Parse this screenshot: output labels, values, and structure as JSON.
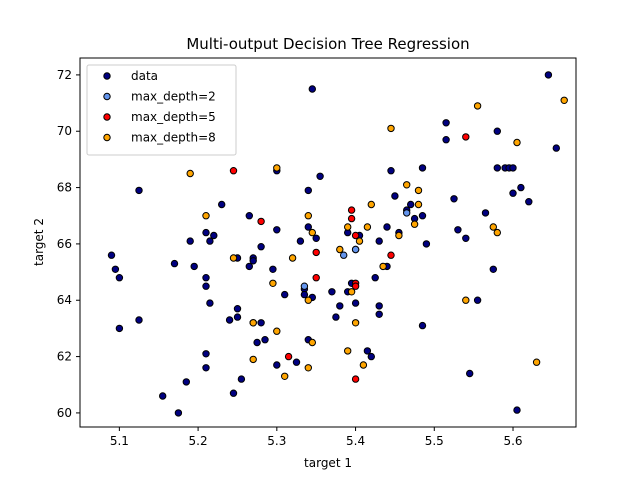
{
  "chart_data": {
    "type": "scatter",
    "title": "Multi-output Decision Tree Regression",
    "xlabel": "target 1",
    "ylabel": "target 2",
    "xlim": [
      5.05,
      5.68
    ],
    "ylim": [
      59.5,
      72.6
    ],
    "xticks": [
      "5.1",
      "5.2",
      "5.3",
      "5.4",
      "5.5",
      "5.6"
    ],
    "xtick_values": [
      5.1,
      5.2,
      5.3,
      5.4,
      5.5,
      5.6
    ],
    "yticks": [
      "60",
      "62",
      "64",
      "66",
      "68",
      "70",
      "72"
    ],
    "ytick_values": [
      60,
      62,
      64,
      66,
      68,
      70,
      72
    ],
    "grid": false,
    "legend_position": "top-left",
    "series": [
      {
        "name": "data",
        "color": "#000080",
        "points": [
          [
            5.09,
            65.6
          ],
          [
            5.095,
            65.1
          ],
          [
            5.1,
            64.8
          ],
          [
            5.1,
            63.0
          ],
          [
            5.125,
            67.9
          ],
          [
            5.125,
            63.3
          ],
          [
            5.155,
            60.6
          ],
          [
            5.17,
            65.3
          ],
          [
            5.175,
            60.0
          ],
          [
            5.185,
            61.1
          ],
          [
            5.19,
            66.1
          ],
          [
            5.195,
            65.2
          ],
          [
            5.21,
            66.4
          ],
          [
            5.21,
            64.8
          ],
          [
            5.21,
            64.5
          ],
          [
            5.21,
            62.1
          ],
          [
            5.21,
            61.6
          ],
          [
            5.215,
            66.1
          ],
          [
            5.215,
            63.9
          ],
          [
            5.22,
            66.3
          ],
          [
            5.23,
            67.4
          ],
          [
            5.24,
            63.3
          ],
          [
            5.245,
            60.7
          ],
          [
            5.25,
            65.5
          ],
          [
            5.25,
            63.7
          ],
          [
            5.25,
            63.4
          ],
          [
            5.255,
            61.2
          ],
          [
            5.265,
            67.0
          ],
          [
            5.265,
            65.2
          ],
          [
            5.27,
            65.5
          ],
          [
            5.27,
            65.4
          ],
          [
            5.275,
            62.5
          ],
          [
            5.28,
            63.2
          ],
          [
            5.28,
            65.9
          ],
          [
            5.285,
            62.6
          ],
          [
            5.295,
            65.1
          ],
          [
            5.3,
            68.6
          ],
          [
            5.3,
            66.5
          ],
          [
            5.3,
            61.7
          ],
          [
            5.31,
            64.2
          ],
          [
            5.325,
            61.8
          ],
          [
            5.33,
            66.1
          ],
          [
            5.335,
            64.4
          ],
          [
            5.335,
            64.2
          ],
          [
            5.34,
            67.9
          ],
          [
            5.34,
            66.6
          ],
          [
            5.34,
            62.6
          ],
          [
            5.345,
            71.5
          ],
          [
            5.345,
            64.1
          ],
          [
            5.35,
            66.2
          ],
          [
            5.355,
            68.4
          ],
          [
            5.37,
            64.3
          ],
          [
            5.375,
            63.4
          ],
          [
            5.38,
            63.8
          ],
          [
            5.39,
            64.3
          ],
          [
            5.39,
            66.4
          ],
          [
            5.395,
            64.6
          ],
          [
            5.4,
            65.8
          ],
          [
            5.4,
            63.9
          ],
          [
            5.405,
            66.3
          ],
          [
            5.415,
            62.2
          ],
          [
            5.42,
            62.0
          ],
          [
            5.425,
            64.8
          ],
          [
            5.43,
            63.8
          ],
          [
            5.43,
            63.5
          ],
          [
            5.43,
            66.1
          ],
          [
            5.44,
            66.6
          ],
          [
            5.44,
            65.2
          ],
          [
            5.445,
            68.6
          ],
          [
            5.45,
            67.7
          ],
          [
            5.455,
            66.4
          ],
          [
            5.465,
            67.2
          ],
          [
            5.47,
            67.4
          ],
          [
            5.475,
            66.9
          ],
          [
            5.485,
            68.7
          ],
          [
            5.485,
            67.0
          ],
          [
            5.485,
            63.1
          ],
          [
            5.49,
            66.0
          ],
          [
            5.515,
            69.7
          ],
          [
            5.515,
            70.3
          ],
          [
            5.525,
            67.6
          ],
          [
            5.53,
            66.5
          ],
          [
            5.54,
            66.2
          ],
          [
            5.545,
            61.4
          ],
          [
            5.555,
            64.0
          ],
          [
            5.565,
            67.1
          ],
          [
            5.575,
            65.1
          ],
          [
            5.58,
            68.7
          ],
          [
            5.58,
            70.0
          ],
          [
            5.59,
            68.7
          ],
          [
            5.595,
            68.7
          ],
          [
            5.6,
            67.8
          ],
          [
            5.6,
            68.7
          ],
          [
            5.605,
            60.1
          ],
          [
            5.61,
            68.0
          ],
          [
            5.62,
            67.5
          ],
          [
            5.645,
            72.0
          ],
          [
            5.655,
            69.4
          ]
        ]
      },
      {
        "name": "max_depth=2",
        "color": "#6495ed",
        "points": [
          [
            5.335,
            64.5
          ],
          [
            5.385,
            65.6
          ],
          [
            5.4,
            65.8
          ],
          [
            5.465,
            67.1
          ]
        ]
      },
      {
        "name": "max_depth=5",
        "color": "#ff0000",
        "points": [
          [
            5.245,
            68.6
          ],
          [
            5.27,
            63.2
          ],
          [
            5.28,
            66.8
          ],
          [
            5.315,
            62.0
          ],
          [
            5.35,
            65.7
          ],
          [
            5.35,
            64.8
          ],
          [
            5.395,
            66.9
          ],
          [
            5.395,
            67.2
          ],
          [
            5.4,
            66.3
          ],
          [
            5.4,
            64.6
          ],
          [
            5.4,
            64.5
          ],
          [
            5.4,
            61.2
          ],
          [
            5.445,
            65.6
          ],
          [
            5.54,
            69.8
          ]
        ]
      },
      {
        "name": "max_depth=8",
        "color": "#ffa500",
        "points": [
          [
            5.19,
            68.5
          ],
          [
            5.21,
            67.0
          ],
          [
            5.245,
            65.5
          ],
          [
            5.27,
            63.2
          ],
          [
            5.27,
            61.9
          ],
          [
            5.295,
            64.6
          ],
          [
            5.3,
            62.9
          ],
          [
            5.3,
            68.7
          ],
          [
            5.31,
            61.3
          ],
          [
            5.32,
            65.5
          ],
          [
            5.34,
            67.0
          ],
          [
            5.34,
            61.6
          ],
          [
            5.34,
            64.0
          ],
          [
            5.345,
            62.5
          ],
          [
            5.345,
            66.4
          ],
          [
            5.38,
            65.8
          ],
          [
            5.39,
            66.6
          ],
          [
            5.39,
            62.2
          ],
          [
            5.395,
            64.3
          ],
          [
            5.4,
            63.2
          ],
          [
            5.405,
            66.1
          ],
          [
            5.41,
            61.7
          ],
          [
            5.415,
            66.6
          ],
          [
            5.42,
            67.4
          ],
          [
            5.435,
            65.2
          ],
          [
            5.445,
            70.1
          ],
          [
            5.455,
            66.3
          ],
          [
            5.465,
            68.1
          ],
          [
            5.475,
            66.7
          ],
          [
            5.48,
            67.9
          ],
          [
            5.48,
            67.4
          ],
          [
            5.54,
            64.0
          ],
          [
            5.555,
            70.9
          ],
          [
            5.575,
            66.6
          ],
          [
            5.58,
            66.4
          ],
          [
            5.605,
            69.6
          ],
          [
            5.63,
            61.8
          ],
          [
            5.665,
            71.1
          ]
        ]
      }
    ]
  }
}
